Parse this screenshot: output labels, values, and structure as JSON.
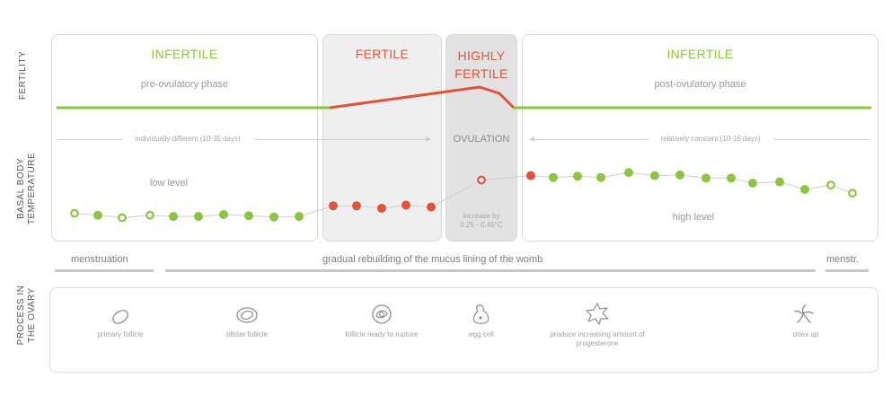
{
  "axis_labels": {
    "fertility": "FERTILITY",
    "bbt_line1": "BASAL BODY",
    "bbt_line2": "TEMPERATURE",
    "ovary_line1": "PROCESS IN",
    "ovary_line2": "THE OVARY"
  },
  "phases": {
    "infertile_pre": {
      "title": "INFERTILE",
      "subtitle": "pre-ovulatory phase",
      "duration_note": "individually different (10-35 days)",
      "level_note": "low level"
    },
    "fertile": {
      "title": "FERTILE"
    },
    "highly_fertile": {
      "title_line1": "HIGHLY",
      "title_line2": "FERTILE",
      "ovulation": "OVULATION",
      "increase_line1": "increase by",
      "increase_line2": "0.25 - 0.45°C"
    },
    "infertile_post": {
      "title": "INFERTILE",
      "subtitle": "post-ovulatory phase",
      "duration_note": "relatively constant (10-16 days)",
      "level_note": "high level"
    }
  },
  "cycle_bar": {
    "menstruation": "menstruation",
    "rebuilding": "gradual rebuilding of the mucus lining of the womb",
    "menstr_short": "menstr."
  },
  "ovary_steps": [
    {
      "icon": "primary-follicle-icon",
      "label": "primary follicle"
    },
    {
      "icon": "blister-follicle-icon",
      "label": "blister follicle"
    },
    {
      "icon": "ready-follicle-icon",
      "label": "follicle ready to rupture"
    },
    {
      "icon": "egg-cell-icon",
      "label": "egg cell"
    },
    {
      "icon": "corpus-luteum-icon",
      "label": "produce increasing amount of progesterone"
    },
    {
      "icon": "dries-up-icon",
      "label": "dries up"
    }
  ],
  "colors": {
    "green": "#8cc63f",
    "red": "#e2533b",
    "grey_line": "#cfcfcf"
  },
  "chart_data": {
    "type": "line",
    "title": "",
    "fertility_curve_levels": [
      "low",
      "low",
      "rising",
      "peak",
      "drop",
      "low"
    ],
    "temperature_series": {
      "levels": [
        0.12,
        0.09,
        0.05,
        0.09,
        0.07,
        0.07,
        0.1,
        0.08,
        0.06,
        0.07,
        0.24,
        0.24,
        0.2,
        0.25,
        0.22,
        0.65,
        0.72,
        0.69,
        0.71,
        0.69,
        0.77,
        0.72,
        0.73,
        0.68,
        0.68,
        0.6,
        0.62,
        0.5,
        0.57,
        0.44
      ],
      "point_states": [
        "hollow-green",
        "filled-green",
        "hollow-green",
        "hollow-green",
        "filled-green",
        "filled-green",
        "filled-green",
        "filled-green",
        "filled-green",
        "filled-green",
        "red",
        "red",
        "red",
        "red",
        "red",
        "hollow-red",
        "red",
        "filled-green",
        "filled-green",
        "filled-green",
        "filled-green",
        "filled-green",
        "filled-green",
        "filled-green",
        "filled-green",
        "filled-green",
        "filled-green",
        "filled-green",
        "hollow-green",
        "hollow-green"
      ]
    }
  }
}
